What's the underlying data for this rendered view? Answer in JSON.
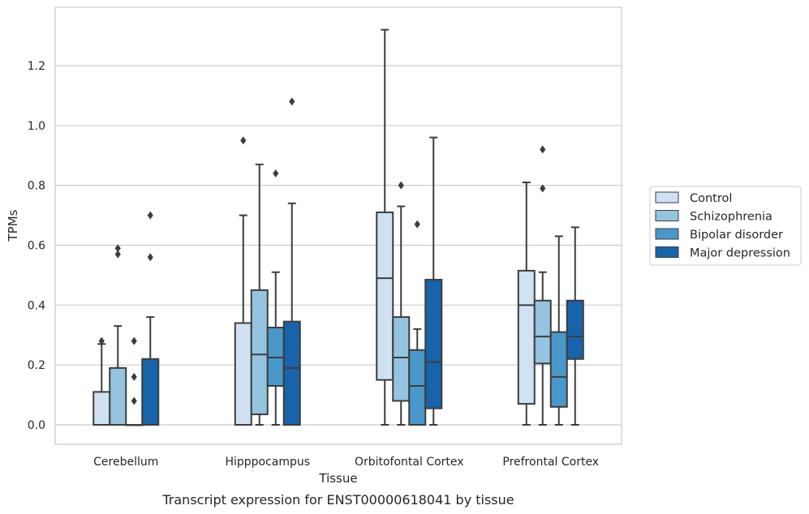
{
  "chart_data": {
    "type": "box",
    "caption": "Transcript expression for ENST00000618041 by tissue",
    "xlabel": "Tissue",
    "ylabel": "TPMs",
    "ylim": [
      -0.065,
      1.395
    ],
    "yticks": [
      0.0,
      0.2,
      0.4,
      0.6,
      0.8,
      1.0,
      1.2
    ],
    "ytick_labels": [
      "0.0",
      "0.2",
      "0.4",
      "0.6",
      "0.8",
      "1.0",
      "1.2"
    ],
    "grid": "horizontal",
    "legend_position": "right",
    "categories": [
      "Cerebellum",
      "Hipppocampus",
      "Orbitofontal Cortex",
      "Prefrontal Cortex"
    ],
    "series": [
      {
        "name": "Control",
        "color": "#d0e1f2",
        "boxes": [
          {
            "whislo": 0.0,
            "q1": 0.0,
            "med": 0.0,
            "q3": 0.11,
            "whishi": 0.27,
            "fliers": [
              0.28
            ]
          },
          {
            "whislo": 0.0,
            "q1": 0.0,
            "med": 0.0,
            "q3": 0.34,
            "whishi": 0.7,
            "fliers": [
              0.95
            ]
          },
          {
            "whislo": 0.0,
            "q1": 0.15,
            "med": 0.49,
            "q3": 0.71,
            "whishi": 1.32,
            "fliers": []
          },
          {
            "whislo": 0.0,
            "q1": 0.07,
            "med": 0.4,
            "q3": 0.515,
            "whishi": 0.81,
            "fliers": []
          }
        ]
      },
      {
        "name": "Schizophrenia",
        "color": "#94c4df",
        "boxes": [
          {
            "whislo": 0.0,
            "q1": 0.0,
            "med": 0.0,
            "q3": 0.19,
            "whishi": 0.33,
            "fliers": [
              0.57,
              0.59
            ]
          },
          {
            "whislo": 0.0,
            "q1": 0.035,
            "med": 0.235,
            "q3": 0.45,
            "whishi": 0.87,
            "fliers": []
          },
          {
            "whislo": 0.0,
            "q1": 0.08,
            "med": 0.225,
            "q3": 0.36,
            "whishi": 0.73,
            "fliers": [
              0.8
            ]
          },
          {
            "whislo": 0.0,
            "q1": 0.205,
            "med": 0.295,
            "q3": 0.415,
            "whishi": 0.51,
            "fliers": [
              0.79,
              0.92
            ]
          }
        ]
      },
      {
        "name": "Bipolar disorder",
        "color": "#4a98c9",
        "boxes": [
          {
            "whislo": 0.0,
            "q1": 0.0,
            "med": 0.0,
            "q3": 0.0,
            "whishi": 0.0,
            "fliers": [
              0.08,
              0.16,
              0.28
            ]
          },
          {
            "whislo": 0.0,
            "q1": 0.13,
            "med": 0.225,
            "q3": 0.325,
            "whishi": 0.51,
            "fliers": [
              0.84
            ]
          },
          {
            "whislo": 0.0,
            "q1": 0.0,
            "med": 0.13,
            "q3": 0.25,
            "whishi": 0.32,
            "fliers": [
              0.67
            ]
          },
          {
            "whislo": 0.0,
            "q1": 0.06,
            "med": 0.16,
            "q3": 0.31,
            "whishi": 0.63,
            "fliers": []
          }
        ]
      },
      {
        "name": "Major depression",
        "color": "#1764ab",
        "boxes": [
          {
            "whislo": 0.0,
            "q1": 0.0,
            "med": 0.0,
            "q3": 0.22,
            "whishi": 0.36,
            "fliers": [
              0.56,
              0.7
            ]
          },
          {
            "whislo": 0.0,
            "q1": 0.0,
            "med": 0.19,
            "q3": 0.345,
            "whishi": 0.74,
            "fliers": [
              1.08
            ]
          },
          {
            "whislo": 0.0,
            "q1": 0.055,
            "med": 0.21,
            "q3": 0.485,
            "whishi": 0.96,
            "fliers": []
          },
          {
            "whislo": 0.0,
            "q1": 0.22,
            "med": 0.295,
            "q3": 0.415,
            "whishi": 0.66,
            "fliers": []
          }
        ]
      }
    ]
  }
}
